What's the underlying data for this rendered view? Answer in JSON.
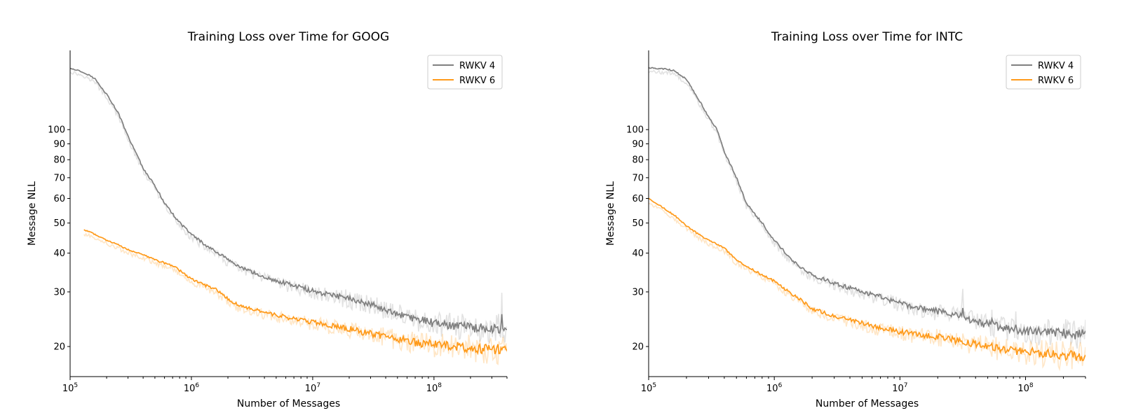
{
  "chart_data": [
    {
      "type": "line",
      "title": "Training Loss over Time for GOOG",
      "xlabel": "Number of Messages",
      "ylabel": "Message NLL",
      "xscale": "log",
      "yscale": "log",
      "xlim": [
        100000,
        400000000
      ],
      "ylim": [
        16,
        180
      ],
      "grid": false,
      "legend_position": "top-right",
      "x_ticks": [
        {
          "value": 100000,
          "base": "10",
          "exp": "5"
        },
        {
          "value": 1000000,
          "base": "10",
          "exp": "6"
        },
        {
          "value": 10000000,
          "base": "10",
          "exp": "7"
        },
        {
          "value": 100000000,
          "base": "10",
          "exp": "8"
        }
      ],
      "y_ticks": [
        {
          "value": 20,
          "label": "20"
        },
        {
          "value": 30,
          "label": "30"
        },
        {
          "value": 40,
          "label": "40"
        },
        {
          "value": 50,
          "label": "50"
        },
        {
          "value": 60,
          "label": "60"
        },
        {
          "value": 70,
          "label": "70"
        },
        {
          "value": 80,
          "label": "80"
        },
        {
          "value": 90,
          "label": "90"
        },
        {
          "value": 100,
          "label": "100"
        }
      ],
      "series": [
        {
          "name": "RWKV 4",
          "color": "#808080",
          "x": [
            100000,
            130000,
            160000,
            200000,
            250000,
            300000,
            350000,
            400000,
            500000,
            600000,
            800000,
            1000000,
            1300000,
            1600000,
            2000000,
            3000000,
            5000000,
            7000000,
            10000000,
            20000000,
            30000000,
            50000000,
            70000000,
            100000000,
            200000000,
            400000000
          ],
          "y": [
            158,
            153,
            146,
            130,
            113,
            95,
            84,
            75,
            66,
            58,
            50,
            46,
            42.5,
            40.5,
            38,
            35,
            32.5,
            31.5,
            30.2,
            28.5,
            27.5,
            25.5,
            24.5,
            23.8,
            23,
            22.8
          ]
        },
        {
          "name": "RWKV 6",
          "color": "#ff9a1a",
          "x": [
            130000,
            160000,
            200000,
            250000,
            300000,
            400000,
            500000,
            700000,
            1000000,
            1300000,
            1600000,
            2000000,
            2500000,
            3000000,
            5000000,
            7000000,
            10000000,
            20000000,
            30000000,
            50000000,
            70000000,
            100000000,
            200000000,
            400000000
          ],
          "y": [
            47.5,
            46,
            44,
            42.5,
            41,
            39.5,
            38,
            36.5,
            33,
            31.5,
            30.5,
            28.5,
            27,
            26.5,
            25.3,
            24.6,
            24,
            22.8,
            22,
            21.2,
            20.6,
            20.3,
            19.8,
            19.5
          ]
        }
      ]
    },
    {
      "type": "line",
      "title": "Training Loss over Time for INTC",
      "xlabel": "Number of Messages",
      "ylabel": "Message NLL",
      "xscale": "log",
      "yscale": "log",
      "xlim": [
        100000,
        300000000
      ],
      "ylim": [
        16,
        180
      ],
      "grid": false,
      "legend_position": "top-right",
      "x_ticks": [
        {
          "value": 100000,
          "base": "10",
          "exp": "5"
        },
        {
          "value": 1000000,
          "base": "10",
          "exp": "6"
        },
        {
          "value": 10000000,
          "base": "10",
          "exp": "7"
        },
        {
          "value": 100000000,
          "base": "10",
          "exp": "8"
        }
      ],
      "y_ticks": [
        {
          "value": 20,
          "label": "20"
        },
        {
          "value": 30,
          "label": "30"
        },
        {
          "value": 40,
          "label": "40"
        },
        {
          "value": 50,
          "label": "50"
        },
        {
          "value": 60,
          "label": "60"
        },
        {
          "value": 70,
          "label": "70"
        },
        {
          "value": 80,
          "label": "80"
        },
        {
          "value": 90,
          "label": "90"
        },
        {
          "value": 100,
          "label": "100"
        }
      ],
      "series": [
        {
          "name": "RWKV 4",
          "color": "#808080",
          "x": [
            100000,
            130000,
            160000,
            200000,
            250000,
            300000,
            350000,
            400000,
            500000,
            600000,
            800000,
            1000000,
            1300000,
            1600000,
            2000000,
            3000000,
            5000000,
            7000000,
            10000000,
            20000000,
            30000000,
            50000000,
            70000000,
            100000000,
            200000000,
            300000000
          ],
          "y": [
            158,
            157,
            155,
            145,
            125,
            110,
            100,
            85,
            70,
            58,
            50,
            44,
            39,
            36,
            34,
            32,
            30,
            29,
            27.5,
            26,
            25,
            23.5,
            23,
            22.5,
            22,
            21.8
          ]
        },
        {
          "name": "RWKV 6",
          "color": "#ff9a1a",
          "x": [
            100000,
            130000,
            160000,
            200000,
            250000,
            300000,
            400000,
            500000,
            700000,
            1000000,
            1300000,
            1600000,
            2000000,
            3000000,
            5000000,
            7000000,
            10000000,
            20000000,
            30000000,
            50000000,
            70000000,
            100000000,
            200000000,
            300000000
          ],
          "y": [
            60,
            56,
            53,
            49,
            46,
            44,
            41.5,
            38,
            35,
            32.5,
            30,
            28.5,
            26.5,
            25,
            23.8,
            23,
            22.3,
            21.5,
            20.8,
            20,
            19.6,
            19.2,
            18.8,
            18.6
          ]
        }
      ]
    }
  ]
}
